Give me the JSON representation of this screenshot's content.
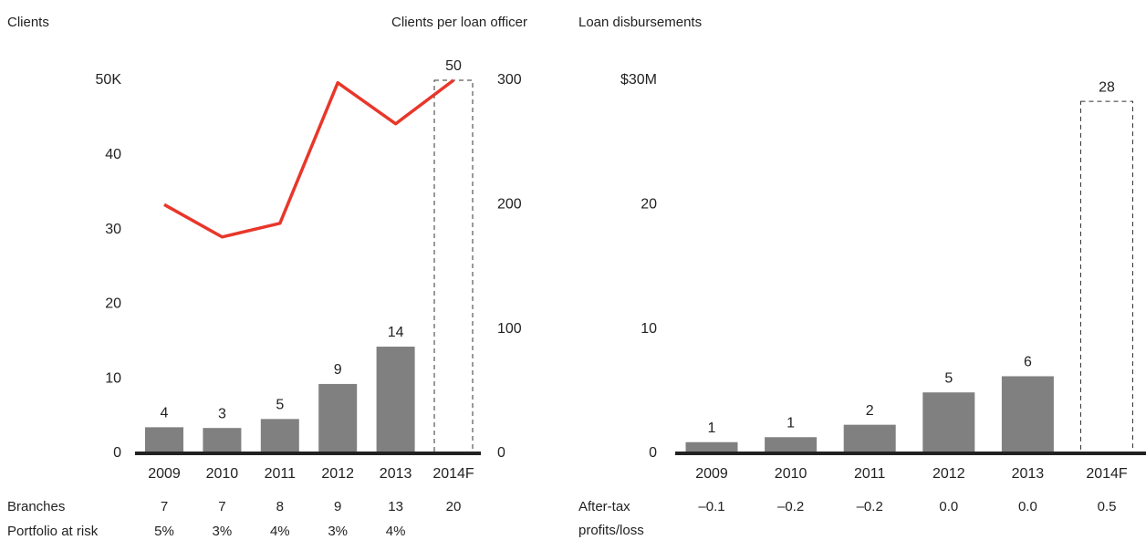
{
  "chart_data": [
    {
      "type": "bar",
      "title": "Clients",
      "y2_title": "Clients per loan officer",
      "categories": [
        "2009",
        "2010",
        "2011",
        "2012",
        "2013",
        "2014F"
      ],
      "series": [
        {
          "type": "bar",
          "color": "#808080",
          "values": [
            3.5,
            3.4,
            4.6,
            9.3,
            14.3,
            50
          ],
          "value_labels": [
            "4",
            "3",
            "5",
            "9",
            "14",
            "50"
          ]
        },
        {
          "type": "line",
          "axis": "y2",
          "color": "#e8372a",
          "values": [
            200,
            174,
            185,
            298,
            265,
            300
          ]
        }
      ],
      "ylim": [
        0,
        50
      ],
      "yticks": [
        0,
        10,
        20,
        30,
        40,
        {
          "value": 50,
          "label": "50K"
        }
      ],
      "y2lim": [
        0,
        300
      ],
      "y2ticks": [
        0,
        100,
        200,
        300
      ],
      "rows": [
        {
          "label": [
            "Branches"
          ],
          "values": [
            "7",
            "7",
            "8",
            "9",
            "13",
            "20"
          ]
        },
        {
          "label": [
            "Portfolio at risk"
          ],
          "values": [
            "5%",
            "3%",
            "4%",
            "3%",
            "4%",
            null
          ]
        }
      ]
    },
    {
      "type": "bar",
      "title": "Loan disbursements",
      "categories": [
        "2009",
        "2010",
        "2011",
        "2012",
        "2013",
        "2014F"
      ],
      "series": [
        {
          "type": "bar",
          "color": "#808080",
          "values": [
            0.9,
            1.3,
            2.3,
            4.9,
            6.2,
            28.3
          ],
          "value_labels": [
            "1",
            "1",
            "2",
            "5",
            "6",
            "28"
          ]
        }
      ],
      "ylim": [
        0,
        30
      ],
      "yticks": [
        0,
        10,
        20,
        {
          "value": 30,
          "label": "$30M"
        }
      ],
      "rows": [
        {
          "label": [
            "After-tax",
            "profits/loss"
          ],
          "values": [
            "–0.1",
            "–0.2",
            "–0.2",
            "0.0",
            "0.0",
            "0.5"
          ]
        }
      ]
    }
  ]
}
